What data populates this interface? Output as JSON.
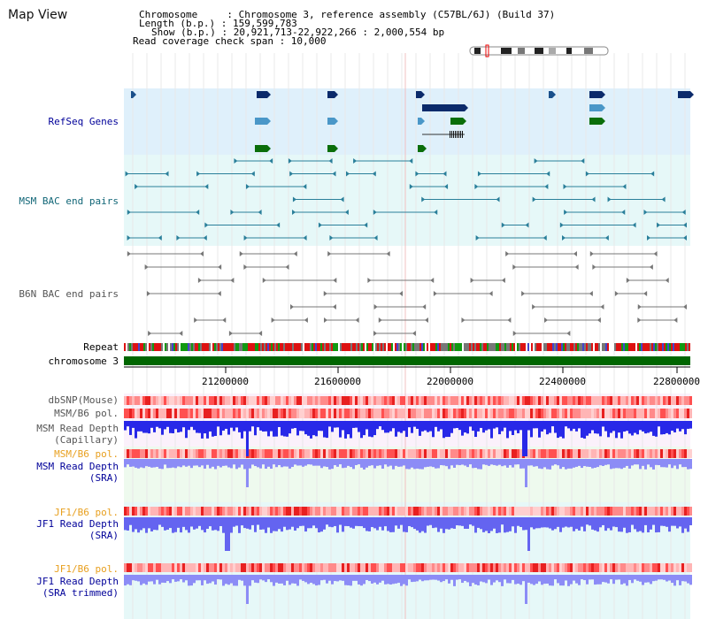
{
  "title": "Map View",
  "info": {
    "chromosome": "Chromosome     : Chromosome 3, reference assembly (C57BL/6J) (Build 37)",
    "length": "Length (b.p.) : 159,599,783",
    "show": "Show (b.p.) : 20,921,713-22,922,266 : 2,000,554 bp",
    "coverage": "Read coverage check span : 10,000"
  },
  "tracks": {
    "refseq": "RefSeq Genes",
    "msm_bac": "MSM BAC end pairs",
    "b6n_bac": "B6N BAC end pairs",
    "repeat": "Repeat",
    "chromosome": "chromosome 3",
    "dbsnp": "dbSNP(Mouse)",
    "msm_b6_pol_1": "MSM/B6 pol.",
    "msm_depth_cap_1": "MSM Read Depth",
    "msm_depth_cap_2": "(Capillary)",
    "msm_b6_pol_2": "MSM/B6 pol.",
    "msm_depth_sra_1": "MSM Read Depth",
    "msm_depth_sra_2": "(SRA)",
    "jf1_pol_1": "JF1/B6 pol.",
    "jf1_depth_sra_1": "JF1 Read Depth",
    "jf1_depth_sra_2": "(SRA)",
    "jf1_pol_2": "JF1/B6 pol.",
    "jf1_depth_trim_1": "JF1 Read Depth",
    "jf1_depth_trim_2": "(SRA trimmed)"
  },
  "axis": {
    "ticks": [
      "21200000",
      "21600000",
      "22000000",
      "22400000",
      "22800000"
    ]
  },
  "colors": {
    "refseq_bg": "#dff0fb",
    "msm_bac_bg": "#e6f8f8",
    "label_blue": "#000099",
    "label_teal": "#116677",
    "label_gray": "#555555",
    "label_orange": "#e8a020",
    "chromosome_bar": "#006600",
    "depth_blue": "#0000ee"
  }
}
